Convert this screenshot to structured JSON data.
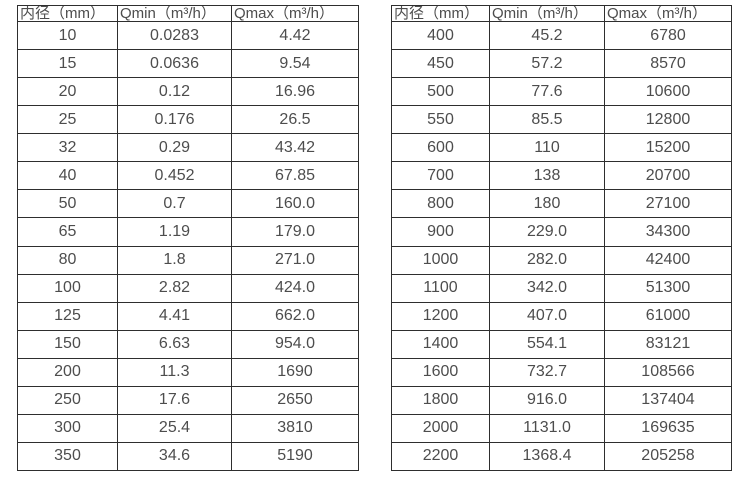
{
  "styles": {
    "background": "#ffffff",
    "border_color": "#2e2e2e",
    "text_color": "#4d4d4d"
  },
  "chart_data": [
    {
      "type": "table",
      "columns": [
        "内径（mm）",
        "Qmin（m³/h）",
        "Qmax（m³/h）"
      ],
      "rows": [
        [
          "10",
          "0.0283",
          "4.42"
        ],
        [
          "15",
          "0.0636",
          "9.54"
        ],
        [
          "20",
          "0.12",
          "16.96"
        ],
        [
          "25",
          "0.176",
          "26.5"
        ],
        [
          "32",
          "0.29",
          "43.42"
        ],
        [
          "40",
          "0.452",
          "67.85"
        ],
        [
          "50",
          "0.7",
          "160.0"
        ],
        [
          "65",
          "1.19",
          "179.0"
        ],
        [
          "80",
          "1.8",
          "271.0"
        ],
        [
          "100",
          "2.82",
          "424.0"
        ],
        [
          "125",
          "4.41",
          "662.0"
        ],
        [
          "150",
          "6.63",
          "954.0"
        ],
        [
          "200",
          "11.3",
          "1690"
        ],
        [
          "250",
          "17.6",
          "2650"
        ],
        [
          "300",
          "25.4",
          "3810"
        ],
        [
          "350",
          "34.6",
          "5190"
        ]
      ]
    },
    {
      "type": "table",
      "columns": [
        "内径（mm）",
        "Qmin（m³/h）",
        "Qmax（m³/h）"
      ],
      "rows": [
        [
          "400",
          "45.2",
          "6780"
        ],
        [
          "450",
          "57.2",
          "8570"
        ],
        [
          "500",
          "77.6",
          "10600"
        ],
        [
          "550",
          "85.5",
          "12800"
        ],
        [
          "600",
          "110",
          "15200"
        ],
        [
          "700",
          "138",
          "20700"
        ],
        [
          "800",
          "180",
          "27100"
        ],
        [
          "900",
          "229.0",
          "34300"
        ],
        [
          "1000",
          "282.0",
          "42400"
        ],
        [
          "1100",
          "342.0",
          "51300"
        ],
        [
          "1200",
          "407.0",
          "61000"
        ],
        [
          "1400",
          "554.1",
          "83121"
        ],
        [
          "1600",
          "732.7",
          "108566"
        ],
        [
          "1800",
          "916.0",
          "137404"
        ],
        [
          "2000",
          "1131.0",
          "169635"
        ],
        [
          "2200",
          "1368.4",
          "205258"
        ]
      ]
    }
  ]
}
